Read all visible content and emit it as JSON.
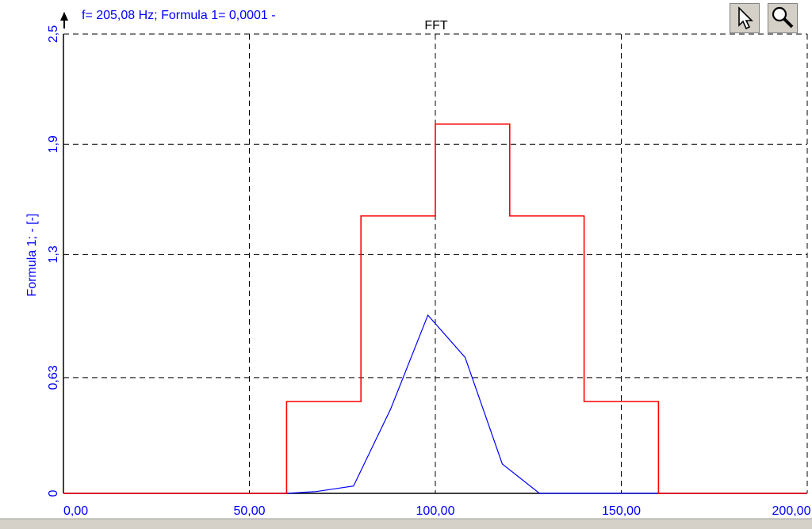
{
  "status_readout": "f= 205,08 Hz; Formula 1= 0,0001 -",
  "icons": {
    "cursor": "arrow-cursor-icon",
    "zoom": "magnifier-zoom-icon",
    "axis_arrow": "up-arrow-icon"
  },
  "colors": {
    "spectrum_line": "#0000ff",
    "envelope_line": "#ff0000",
    "axis_text": "#0000ff",
    "grid": "#000000"
  },
  "chart_data": {
    "type": "line",
    "title": "FFT",
    "xlabel": "",
    "ylabel": "Formula 1; - [-]",
    "xlim": [
      0,
      200
    ],
    "ylim": [
      0,
      2.5
    ],
    "x_ticks": [
      0,
      50,
      100,
      150,
      200
    ],
    "x_tick_labels": [
      "0,00",
      "50,00",
      "100,00",
      "150,00",
      "200,00"
    ],
    "y_ticks": [
      0,
      0.63,
      1.3,
      1.9,
      2.5
    ],
    "y_tick_labels": [
      "0",
      "0,63",
      "1,3",
      "1,9",
      "2,5"
    ],
    "grid": true,
    "series": [
      {
        "color": "#0000ff",
        "x": [
          0,
          60,
          68,
          78,
          88,
          98,
          108,
          118,
          128,
          140,
          160,
          200
        ],
        "y": [
          0,
          0,
          0.01,
          0.04,
          0.46,
          0.97,
          0.74,
          0.16,
          0,
          0,
          0,
          0
        ]
      },
      {
        "color": "#ff0000",
        "step": true,
        "x": [
          0,
          60,
          60,
          80,
          80,
          100,
          100,
          120,
          120,
          140,
          140,
          160,
          160,
          200
        ],
        "y": [
          0,
          0,
          0.5,
          0.5,
          1.51,
          1.51,
          2.01,
          2.01,
          1.51,
          1.51,
          0.5,
          0.5,
          0,
          0
        ]
      }
    ]
  }
}
